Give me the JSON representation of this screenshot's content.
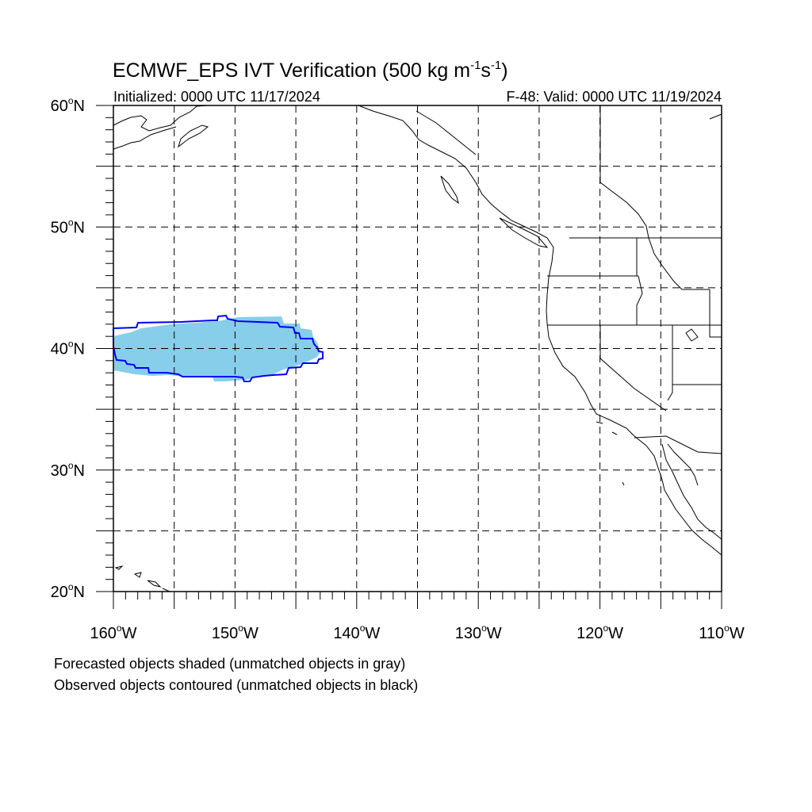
{
  "title_main": "ECMWF_EPS IVT Verification (500 kg m",
  "title_exp1": "-1",
  "title_mid": "s",
  "title_exp2": "-1",
  "title_close": ")",
  "initialized": "Initialized: 0000 UTC 11/17/2024",
  "valid": "F-48: Valid: 0000 UTC 11/19/2024",
  "lat_labels": [
    {
      "lat": 60,
      "text": "60",
      "hemi": "N"
    },
    {
      "lat": 50,
      "text": "50",
      "hemi": "N"
    },
    {
      "lat": 40,
      "text": "40",
      "hemi": "N"
    },
    {
      "lat": 30,
      "text": "30",
      "hemi": "N"
    },
    {
      "lat": 20,
      "text": "20",
      "hemi": "N"
    }
  ],
  "lon_labels": [
    {
      "lon": -160,
      "text": "160",
      "hemi": "W"
    },
    {
      "lon": -150,
      "text": "150",
      "hemi": "W"
    },
    {
      "lon": -140,
      "text": "140",
      "hemi": "W"
    },
    {
      "lon": -130,
      "text": "130",
      "hemi": "W"
    },
    {
      "lon": -120,
      "text": "120",
      "hemi": "W"
    },
    {
      "lon": -110,
      "text": "110",
      "hemi": "W"
    }
  ],
  "degree_symbol": "o",
  "note_forecast": "Forecasted objects shaded (unmatched objects in gray)",
  "note_observed": "Observed objects contoured (unmatched objects in black)",
  "colors": {
    "forecast_fill": "#87ceeb",
    "observed_contour": "#0000ff",
    "grid": "#000000",
    "coast": "#000000"
  }
}
